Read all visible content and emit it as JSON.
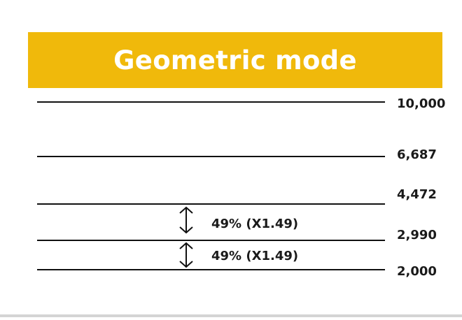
{
  "title": "Geometric mode",
  "colors": {
    "banner": "#F0B90B",
    "line": "#111111",
    "text": "#1a1a1a",
    "banner_text": "#ffffff"
  },
  "levels": [
    {
      "value": 10000,
      "label": "10,000"
    },
    {
      "value": 6687,
      "label": "6,687"
    },
    {
      "value": 4472,
      "label": "4,472"
    },
    {
      "value": 2990,
      "label": "2,990"
    },
    {
      "value": 2000,
      "label": "2,000"
    }
  ],
  "gaps": [
    {
      "icon": "double-arrow-vertical-icon",
      "label": "49% (X1.49)"
    },
    {
      "icon": "double-arrow-vertical-icon",
      "label": "49% (X1.49)"
    }
  ]
}
